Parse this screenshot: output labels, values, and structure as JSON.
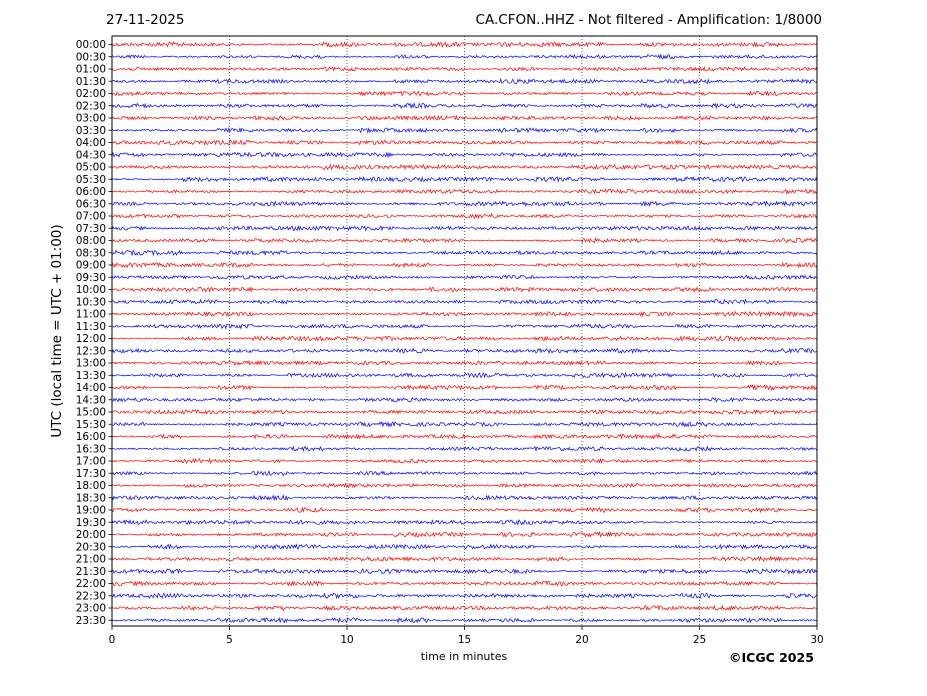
{
  "header": {
    "date": "27-11-2025",
    "station_info": "CA.CFON..HHZ - Not filtered - Amplification: 1/8000"
  },
  "footer": {
    "copyright": "©ICGC 2025"
  },
  "chart_data": {
    "type": "line",
    "title": "CA.CFON..HHZ - Not filtered - Amplification: 1/8000",
    "xlabel": "time in minutes",
    "ylabel": "UTC (local time = UTC + 01:00)",
    "xlim": [
      0,
      30
    ],
    "x_ticks": [
      0,
      5,
      10,
      15,
      20,
      25,
      30
    ],
    "grid": "vertical dotted at x ticks",
    "row_labels": [
      "00:00",
      "00:30",
      "01:00",
      "01:30",
      "02:00",
      "02:30",
      "03:00",
      "03:30",
      "04:00",
      "04:30",
      "05:00",
      "05:30",
      "06:00",
      "06:30",
      "07:00",
      "07:30",
      "08:00",
      "08:30",
      "09:00",
      "09:30",
      "10:00",
      "10:30",
      "11:00",
      "11:30",
      "12:00",
      "12:30",
      "13:00",
      "13:30",
      "14:00",
      "14:30",
      "15:00",
      "15:30",
      "16:00",
      "16:30",
      "17:00",
      "17:30",
      "18:00",
      "18:30",
      "19:00",
      "19:30",
      "20:00",
      "20:30",
      "21:00",
      "21:30",
      "22:00",
      "22:30",
      "23:00",
      "23:30"
    ],
    "row_colors": [
      "#ff0000",
      "#0000ff"
    ]
  }
}
